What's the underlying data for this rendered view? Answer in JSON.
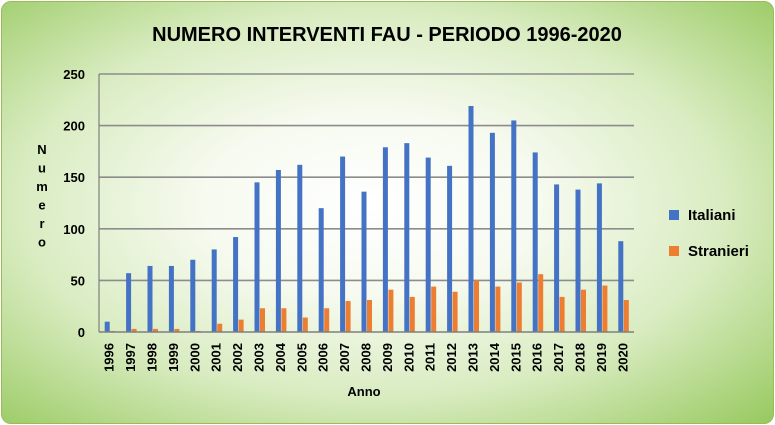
{
  "chart_data": {
    "type": "bar",
    "title": "NUMERO INTERVENTI FAU - PERIODO 1996-2020",
    "xlabel": "Anno",
    "ylabel": "Numero",
    "ylim": [
      0,
      250
    ],
    "yticks": [
      0,
      50,
      100,
      150,
      200,
      250
    ],
    "grid": true,
    "legend_position": "right",
    "categories": [
      "1996",
      "1997",
      "1998",
      "1999",
      "2000",
      "2001",
      "2002",
      "2003",
      "2004",
      "2005",
      "2006",
      "2007",
      "2008",
      "2009",
      "2010",
      "2011",
      "2012",
      "2013",
      "2014",
      "2015",
      "2016",
      "2017",
      "2018",
      "2019",
      "2020"
    ],
    "series": [
      {
        "name": "Italiani",
        "color": "#4472c4",
        "values": [
          10,
          57,
          64,
          64,
          70,
          80,
          92,
          145,
          157,
          162,
          120,
          170,
          136,
          179,
          183,
          169,
          161,
          219,
          193,
          205,
          174,
          143,
          138,
          144,
          88
        ]
      },
      {
        "name": "Stranieri",
        "color": "#ed7d31",
        "values": [
          1,
          3,
          3,
          3,
          1,
          8,
          12,
          23,
          23,
          14,
          23,
          30,
          31,
          41,
          34,
          44,
          39,
          50,
          44,
          48,
          56,
          34,
          41,
          45,
          31
        ]
      }
    ]
  }
}
